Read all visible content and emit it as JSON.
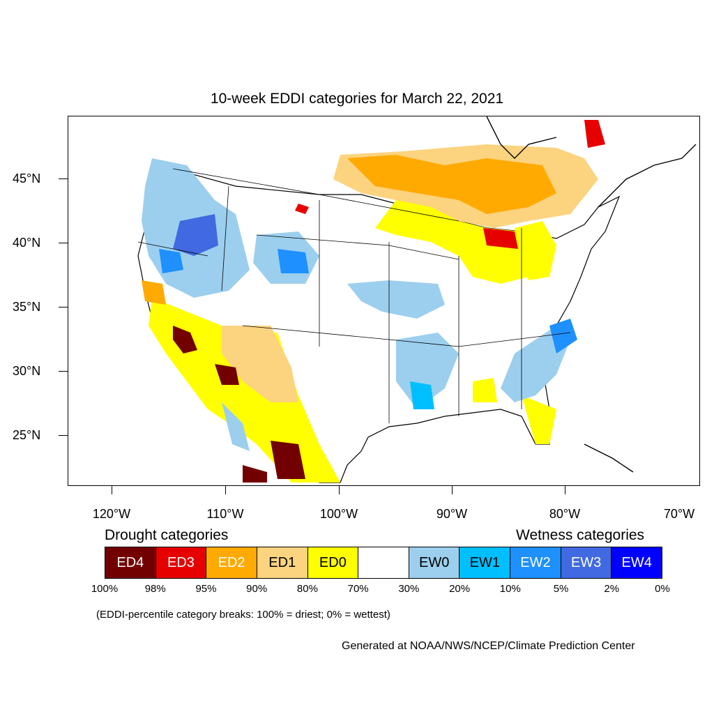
{
  "title": "10-week EDDI categories for March 22, 2021",
  "axes": {
    "lat_labels": [
      "45°N",
      "40°N",
      "35°N",
      "30°N",
      "25°N"
    ],
    "lon_labels": [
      "120°W",
      "110°W",
      "100°W",
      "90°W",
      "80°W",
      "70°W"
    ]
  },
  "legend": {
    "drought_heading": "Drought categories",
    "wetness_heading": "Wetness categories",
    "categories": [
      {
        "label": "ED4",
        "color": "#730000",
        "text_color": "#ffffff"
      },
      {
        "label": "ED3",
        "color": "#e60000",
        "text_color": "#ffffff"
      },
      {
        "label": "ED2",
        "color": "#ffaa00",
        "text_color": "#ffffff"
      },
      {
        "label": "ED1",
        "color": "#fcd37f",
        "text_color": "#000000"
      },
      {
        "label": "ED0",
        "color": "#ffff00",
        "text_color": "#000000"
      },
      {
        "label": "",
        "color": "#ffffff",
        "text_color": "#000000"
      },
      {
        "label": "EW0",
        "color": "#9ccfee",
        "text_color": "#000000"
      },
      {
        "label": "EW1",
        "color": "#00bfff",
        "text_color": "#000000"
      },
      {
        "label": "EW2",
        "color": "#1e90ff",
        "text_color": "#ffffff"
      },
      {
        "label": "EW3",
        "color": "#4169e1",
        "text_color": "#ffffff"
      },
      {
        "label": "EW4",
        "color": "#0000ff",
        "text_color": "#ffffff"
      }
    ],
    "breaks": [
      "100%",
      "98%",
      "95%",
      "90%",
      "80%",
      "70%",
      "30%",
      "20%",
      "10%",
      "5%",
      "2%",
      "0%"
    ]
  },
  "note": "(EDDI-percentile category breaks: 100% = driest; 0% = wettest)",
  "credit": "Generated at NOAA/NWS/NCEP/Climate Prediction Center"
}
